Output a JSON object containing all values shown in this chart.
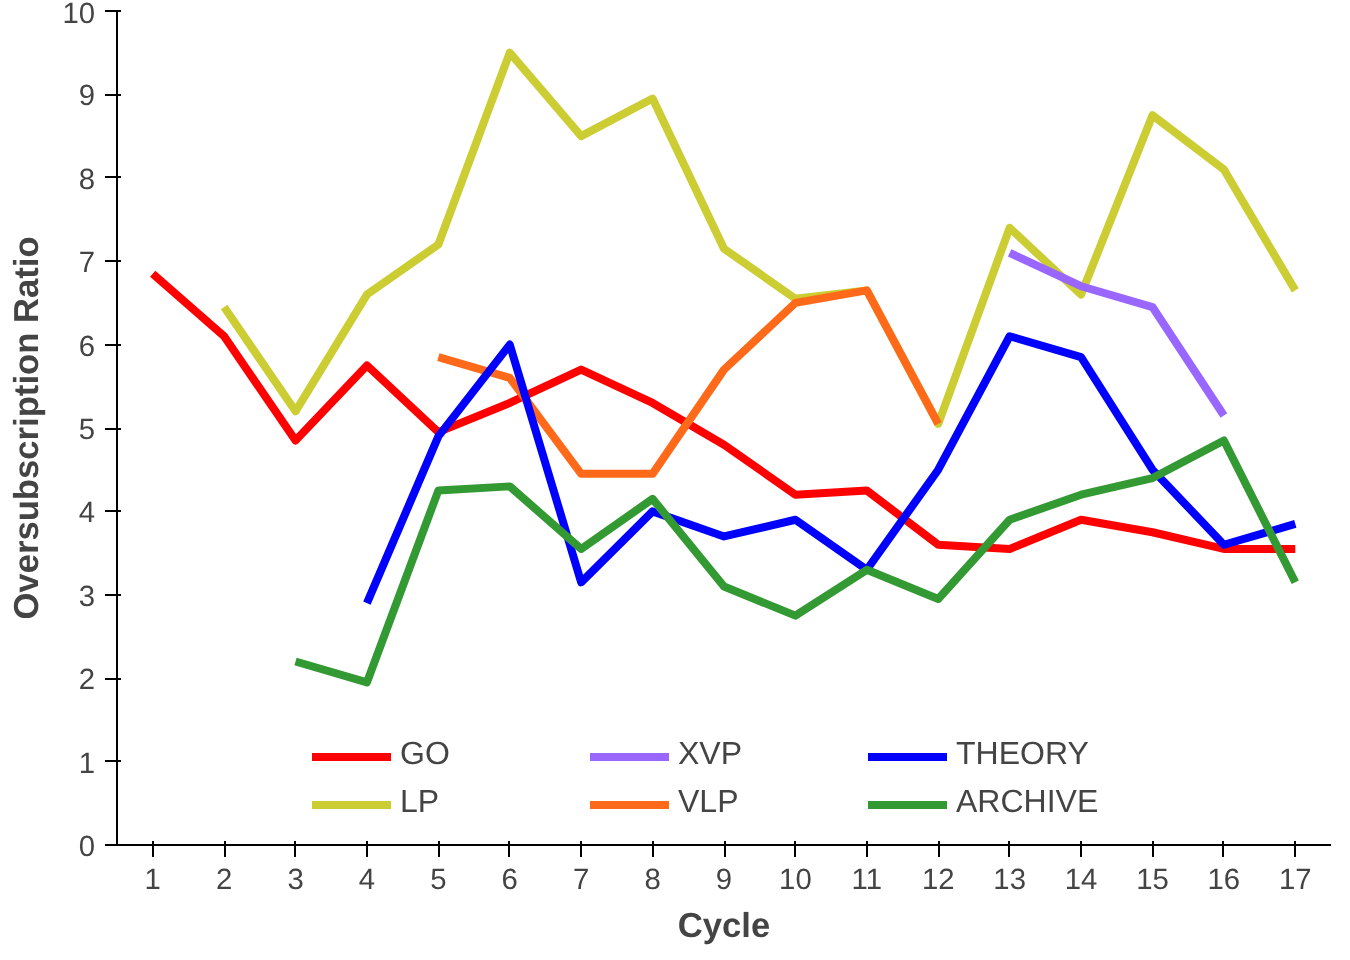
{
  "chart_data": {
    "type": "line",
    "xlabel": "Cycle",
    "ylabel": "Oversubscription Ratio",
    "x": [
      1,
      2,
      3,
      4,
      5,
      6,
      7,
      8,
      9,
      10,
      11,
      12,
      13,
      14,
      15,
      16,
      17
    ],
    "xlim": [
      0.5,
      17.5
    ],
    "xticks": [
      1,
      2,
      3,
      4,
      5,
      6,
      7,
      8,
      9,
      10,
      11,
      12,
      13,
      14,
      15,
      16,
      17
    ],
    "ylim": [
      0,
      10
    ],
    "yticks": [
      0,
      1,
      2,
      3,
      4,
      5,
      6,
      7,
      8,
      9,
      10
    ],
    "grid": false,
    "legend": "bottom",
    "marker": "none",
    "line_style": "solid",
    "series": [
      {
        "name": "GO",
        "color": "#ff0000",
        "values": [
          6.85,
          6.1,
          4.85,
          5.75,
          4.95,
          5.3,
          5.7,
          5.3,
          4.8,
          4.2,
          4.25,
          3.6,
          3.55,
          3.9,
          3.75,
          3.55,
          3.55
        ]
      },
      {
        "name": "LP",
        "color": "#cccc33",
        "values": [
          null,
          6.45,
          5.2,
          6.6,
          7.2,
          9.5,
          8.5,
          8.95,
          7.15,
          6.55,
          6.65,
          5.05,
          7.4,
          6.6,
          8.75,
          8.1,
          6.65
        ]
      },
      {
        "name": "XVP",
        "color": "#9966ff",
        "values": [
          null,
          null,
          null,
          null,
          null,
          null,
          null,
          null,
          null,
          null,
          null,
          null,
          7.1,
          6.7,
          6.45,
          5.15,
          null
        ]
      },
      {
        "name": "VLP",
        "color": "#ff6a1a",
        "values": [
          null,
          null,
          null,
          null,
          5.85,
          5.6,
          4.45,
          4.45,
          5.7,
          6.5,
          6.65,
          5.05,
          null,
          null,
          null,
          null,
          null
        ]
      },
      {
        "name": "THEORY",
        "color": "#0000ff",
        "values": [
          null,
          null,
          null,
          2.9,
          4.9,
          6.0,
          3.15,
          4.0,
          3.7,
          3.9,
          3.3,
          4.5,
          6.1,
          5.85,
          4.5,
          3.6,
          3.85
        ]
      },
      {
        "name": "ARCHIVE",
        "color": "#339933",
        "values": [
          null,
          null,
          2.2,
          1.95,
          4.25,
          4.3,
          3.55,
          4.15,
          3.1,
          2.75,
          3.3,
          2.95,
          3.9,
          4.2,
          4.4,
          4.85,
          3.15
        ]
      }
    ]
  }
}
